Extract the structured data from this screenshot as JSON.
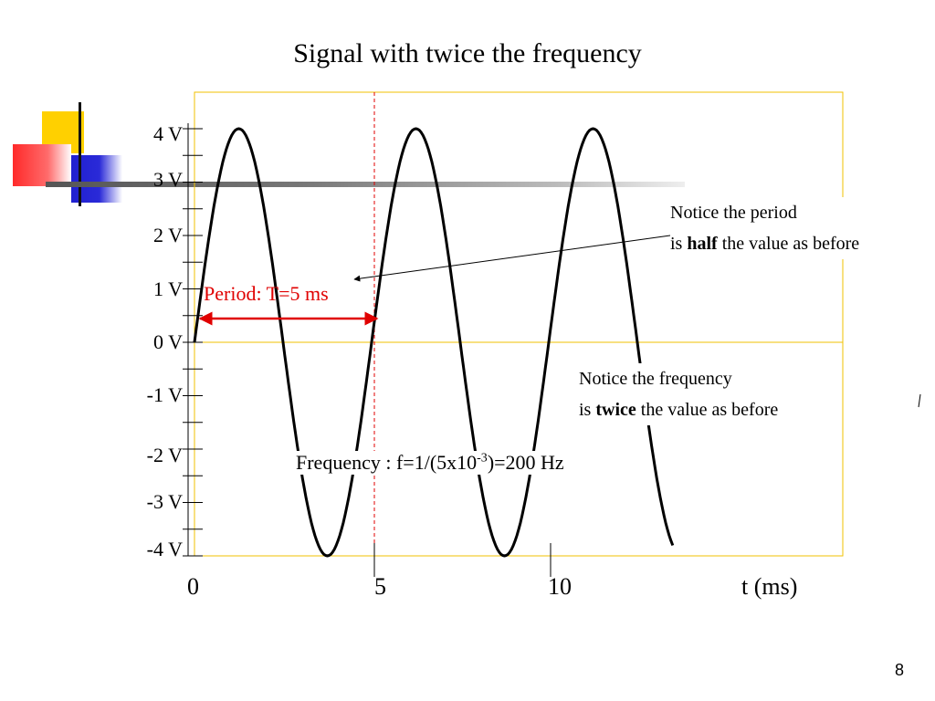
{
  "slide": {
    "title": "Signal with twice the frequency",
    "page_number": "8"
  },
  "y_axis": {
    "ticks": [
      "4 V",
      "3 V",
      "2 V",
      "1 V",
      "0 V",
      "-1 V",
      "-2 V",
      "-3 V",
      "-4 V"
    ]
  },
  "x_axis": {
    "ticks": [
      "0",
      "5",
      "10"
    ],
    "label": "t (ms)"
  },
  "annotations": {
    "period_label": "Period: T=5 ms",
    "period_note_line1": "Notice the period",
    "period_note_prefix": "is ",
    "period_note_bold": "half",
    "period_note_suffix": " the value as before",
    "freq_note_line1": "Notice the frequency",
    "freq_note_prefix": "is ",
    "freq_note_bold": "twice",
    "freq_note_suffix": " the value as before",
    "frequency_prefix": "Frequency : f=1/(5x10",
    "frequency_exponent": "-3",
    "frequency_suffix": ")=200 Hz"
  },
  "signal": {
    "type": "sine",
    "amplitude_v": 4,
    "period_ms": 5,
    "t_start_ms": 0,
    "t_end_ms": 13.5
  },
  "colors": {
    "frame": "#f2c200",
    "accent_red": "#e00000",
    "deco_yellow": "#ffd000",
    "deco_blue": "#2a2ad8",
    "deco_red": "#ff3b3b"
  }
}
